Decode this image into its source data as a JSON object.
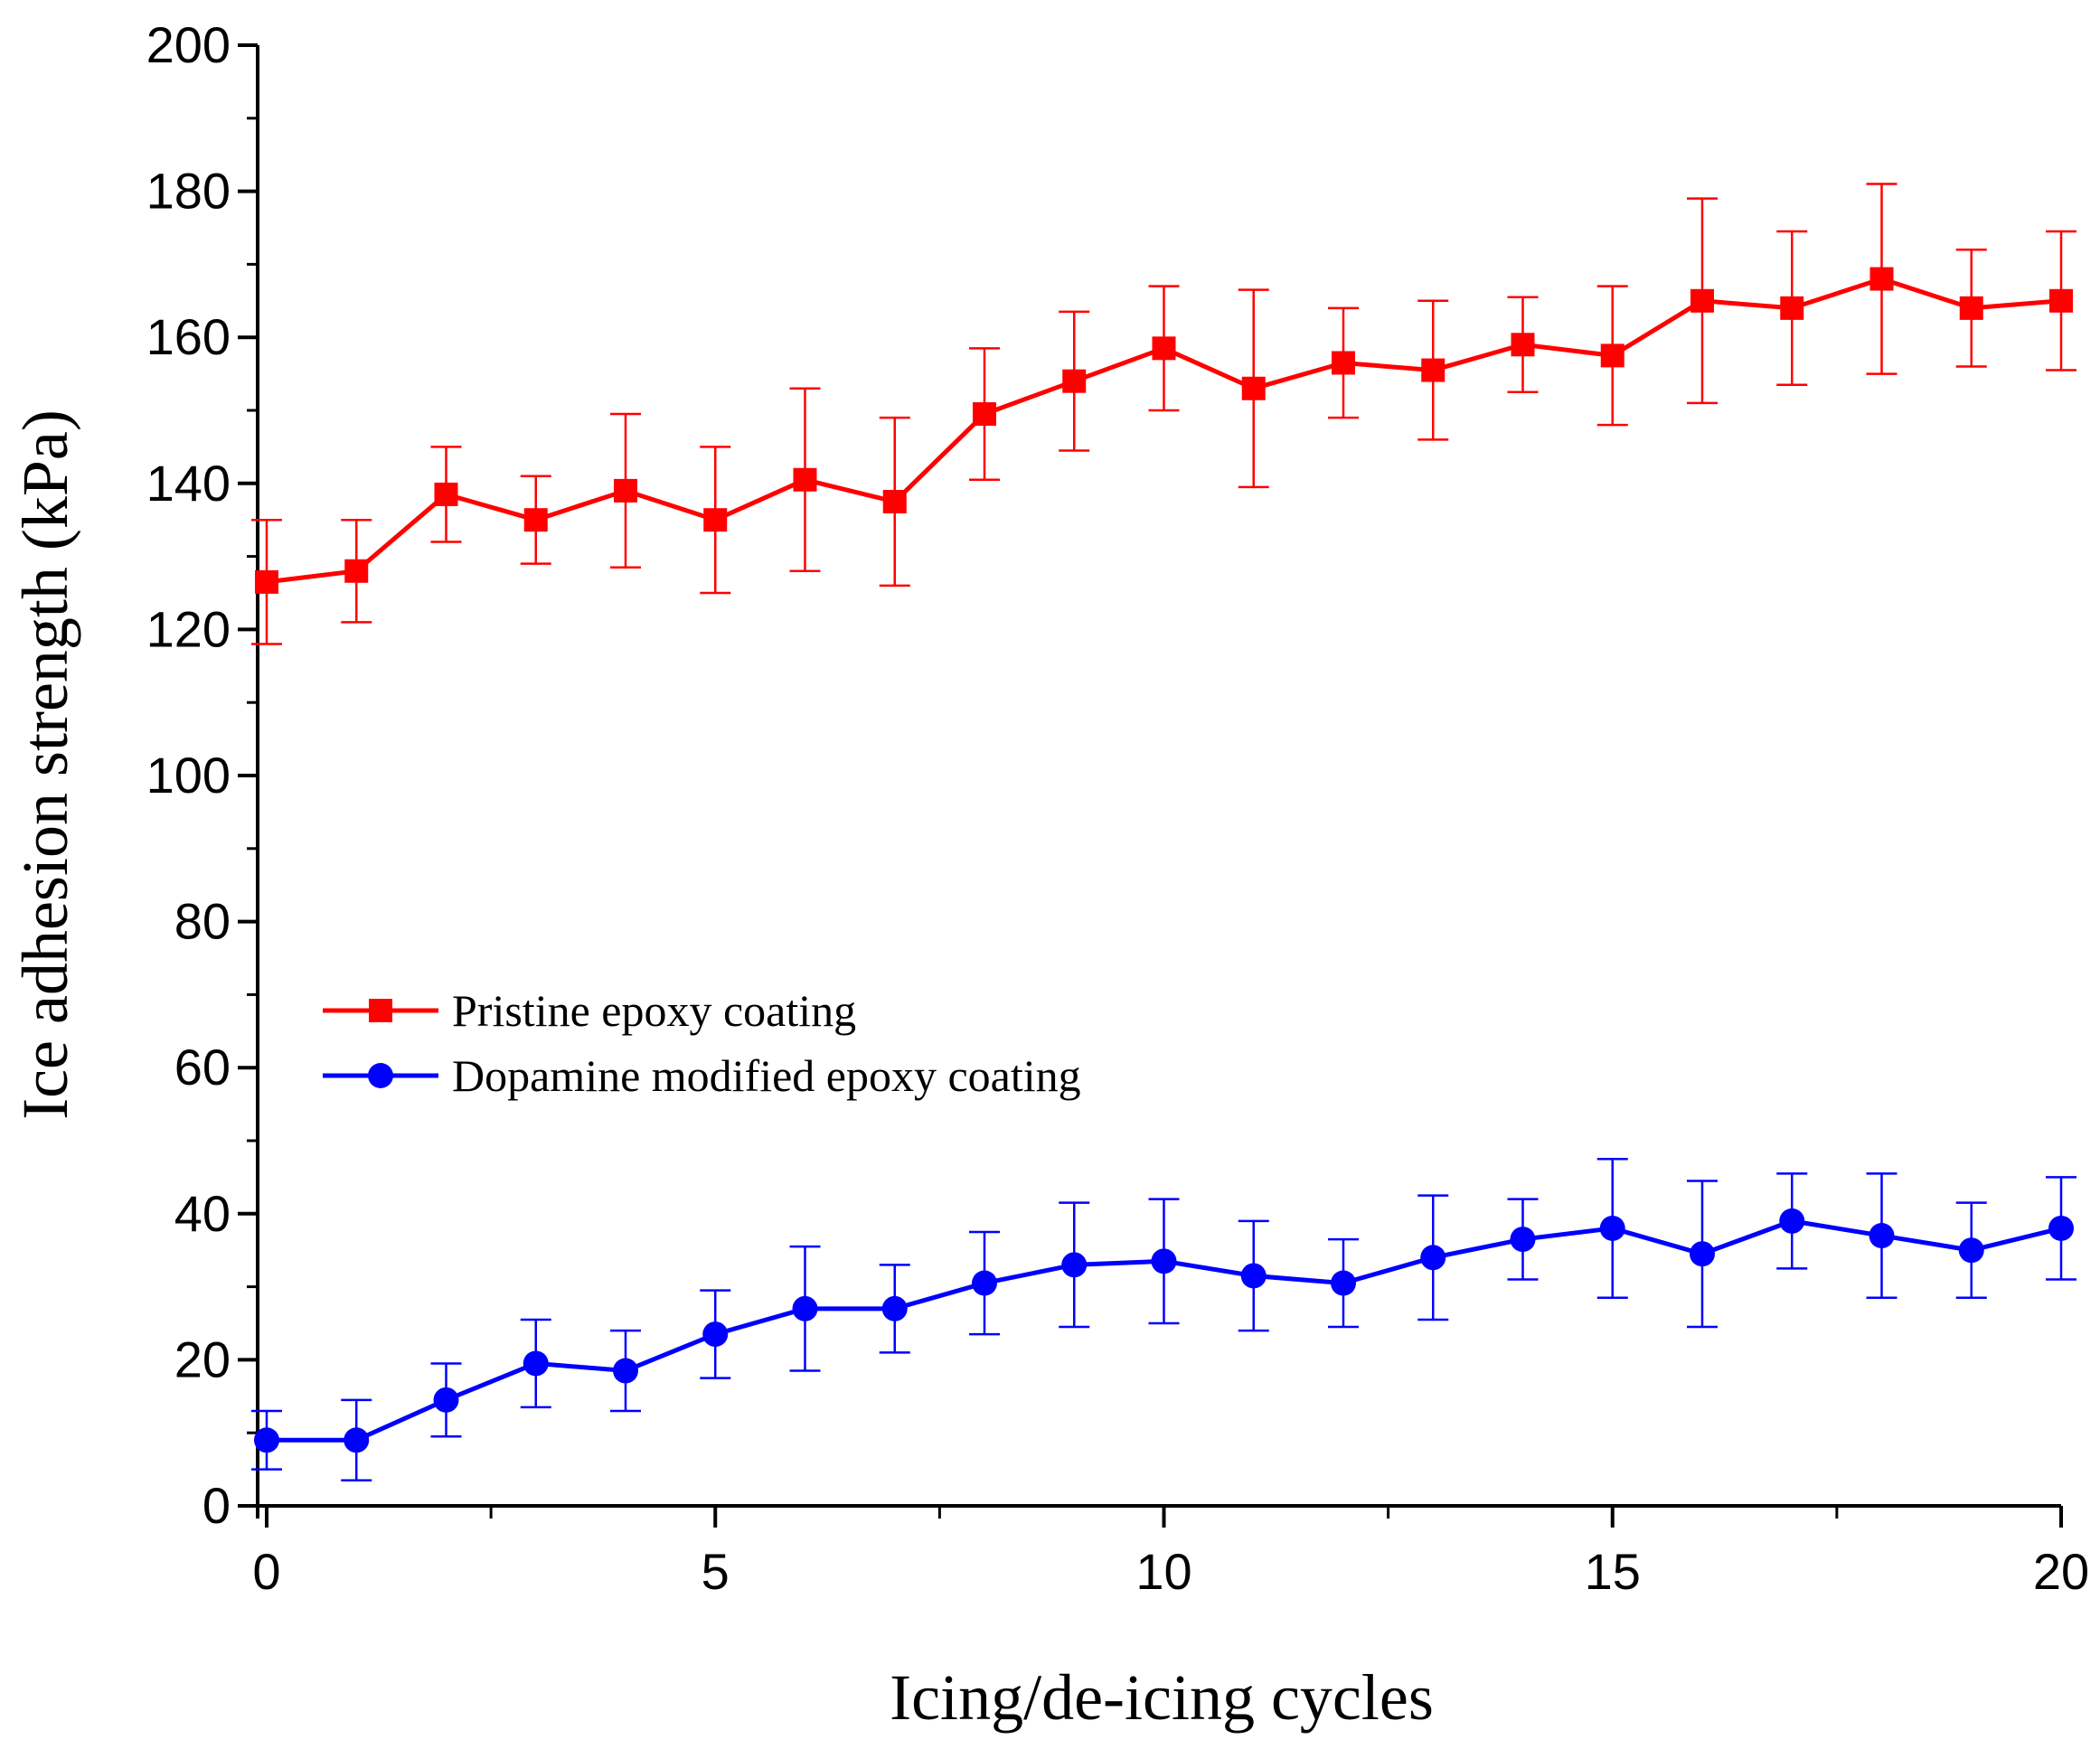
{
  "chart_data": {
    "type": "line",
    "title": "",
    "xlabel": "Icing/de-icing cycles",
    "ylabel": "Ice adhesion strength  (kPa)",
    "xlim": [
      0,
      20
    ],
    "ylim": [
      0,
      200
    ],
    "xticks": [
      0,
      5,
      10,
      15,
      20
    ],
    "xtick_labels": [
      "0",
      "5",
      "10",
      "15",
      "20"
    ],
    "yticks": [
      0,
      20,
      40,
      60,
      80,
      100,
      120,
      140,
      160,
      180,
      200
    ],
    "ytick_labels": [
      "0",
      "20",
      "40",
      "60",
      "80",
      "100",
      "120",
      "140",
      "160",
      "180",
      "200"
    ],
    "grid": false,
    "legend_position": "center-left",
    "x": [
      0,
      1,
      2,
      3,
      4,
      5,
      6,
      7,
      8,
      9,
      10,
      11,
      12,
      13,
      14,
      15,
      16,
      17,
      18,
      19,
      20
    ],
    "series": [
      {
        "name": "Pristine epoxy coating",
        "color": "#ff0000",
        "marker": "square",
        "values": [
          126.5,
          128,
          138.5,
          135,
          139,
          135,
          140.5,
          137.5,
          149.5,
          154,
          158.5,
          153,
          156.5,
          155.5,
          159,
          157.5,
          165,
          164,
          168,
          164,
          165
        ],
        "errors": [
          8.5,
          7,
          6.5,
          6,
          10.5,
          10,
          12.5,
          11.5,
          9,
          9.5,
          8.5,
          13.5,
          7.5,
          9.5,
          6.5,
          9.5,
          14,
          10.5,
          13,
          8,
          9.5
        ]
      },
      {
        "name": "Dopamine modified epoxy coating",
        "color": "#0000ff",
        "marker": "circle",
        "values": [
          9,
          9,
          14.5,
          19.5,
          18.5,
          23.5,
          27,
          27,
          30.5,
          33,
          33.5,
          31.5,
          30.5,
          34,
          36.5,
          38,
          34.5,
          39,
          37,
          35,
          38
        ],
        "errors": [
          4,
          5.5,
          5,
          6,
          5.5,
          6,
          8.5,
          6,
          7,
          8.5,
          8.5,
          7.5,
          6,
          8.5,
          5.5,
          9.5,
          10,
          6.5,
          8.5,
          6.5,
          7
        ]
      }
    ]
  }
}
